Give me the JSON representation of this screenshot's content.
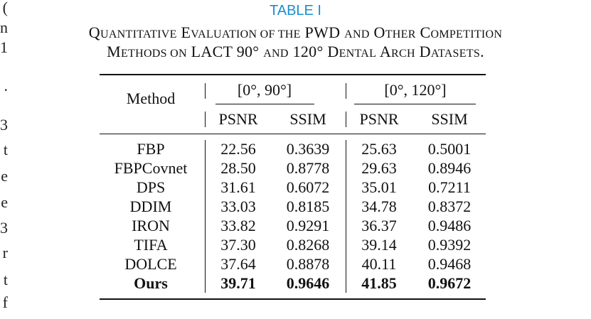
{
  "table_label": "TABLE I",
  "caption_line1": "Quantitative Evaluation of the PWD and Other Competition",
  "caption_line2": "Methods on LACT 90° and 120° Dental Arch Datasets.",
  "caption_html_line1": "Q<span style=\"font-size:16px\">UANTITATIVE</span> E<span style=\"font-size:16px\">VALUATION OF THE</span> PWD <span style=\"font-size:16px\">AND</span> O<span style=\"font-size:16px\">THER</span> C<span style=\"font-size:16px\">OMPETITION</span>",
  "caption_html_line2": "M<span style=\"font-size:16px\">ETHODS ON</span> LACT 90° <span style=\"font-size:16px\">AND</span> 120° D<span style=\"font-size:16px\">ENTAL</span> A<span style=\"font-size:16px\">RCH</span> D<span style=\"font-size:16px\">ATASETS</span>.",
  "table": {
    "method_header": "Method",
    "group1": "[0°, 90°]",
    "group2": "[0°, 120°]",
    "sub_headers": [
      "PSNR",
      "SSIM",
      "PSNR",
      "SSIM"
    ],
    "rows": [
      {
        "method": "FBP",
        "values": [
          "22.56",
          "0.3639",
          "25.63",
          "0.5001"
        ],
        "bold": false
      },
      {
        "method": "FBPCovnet",
        "values": [
          "28.50",
          "0.8778",
          "29.63",
          "0.8946"
        ],
        "bold": false
      },
      {
        "method": "DPS",
        "values": [
          "31.61",
          "0.6072",
          "35.01",
          "0.7211"
        ],
        "bold": false
      },
      {
        "method": "DDIM",
        "values": [
          "33.03",
          "0.8185",
          "34.78",
          "0.8372"
        ],
        "bold": false
      },
      {
        "method": "IRON",
        "values": [
          "33.82",
          "0.9291",
          "36.37",
          "0.9486"
        ],
        "bold": false
      },
      {
        "method": "TIFA",
        "values": [
          "37.30",
          "0.8268",
          "39.14",
          "0.9392"
        ],
        "bold": false
      },
      {
        "method": "DOLCE",
        "values": [
          "37.64",
          "0.8878",
          "40.11",
          "0.9468"
        ],
        "bold": false
      },
      {
        "method": "Ours",
        "values": [
          "39.71",
          "0.9646",
          "41.85",
          "0.9672"
        ],
        "bold": true
      }
    ]
  },
  "left_margin_fragments": [
    "(",
    "n",
    "1",
    ".",
    "3",
    "t",
    "e",
    "e",
    "3",
    "r",
    "t",
    "f"
  ]
}
